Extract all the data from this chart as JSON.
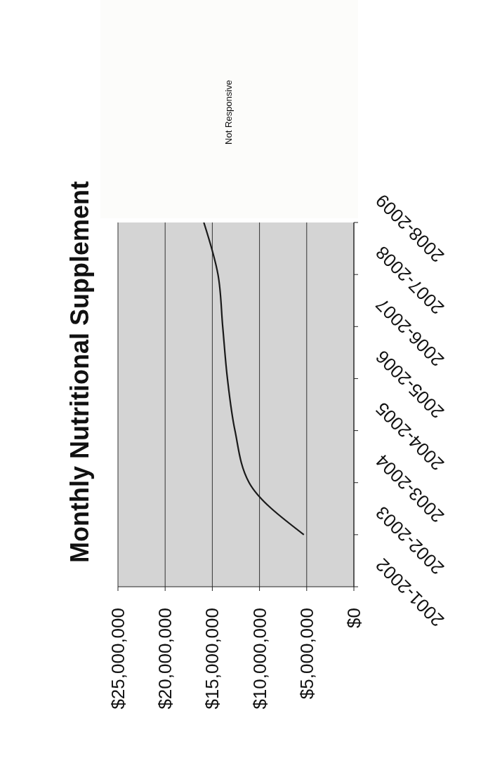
{
  "chart_data": {
    "type": "line",
    "title": "Monthly Nutritional Supplement",
    "orientation": "horizontal",
    "categories": [
      "2008-2009",
      "2007-2008",
      "2006-2007",
      "2005-2006",
      "2004-2005",
      "2003-2004",
      "2002-2003",
      "2001-2002"
    ],
    "series": [
      {
        "color": "#1a1a1a",
        "values": [
          15900000,
          14400000,
          13900000,
          13400000,
          12600000,
          11100000,
          5300000,
          null
        ]
      }
    ],
    "xlim": [
      25000000,
      0
    ],
    "xticks": [
      {
        "value": 0,
        "label": "$0"
      },
      {
        "value": 5000000,
        "label": "$5,000,000"
      },
      {
        "value": 10000000,
        "label": "$10,000,000"
      },
      {
        "value": 15000000,
        "label": "$15,000,000"
      },
      {
        "value": 20000000,
        "label": "$20,000,000"
      },
      {
        "value": 25000000,
        "label": "$25,000,000"
      }
    ],
    "grid": "x",
    "marker": "none",
    "line_style": "solid",
    "annotations": [
      "Not Responsive"
    ]
  }
}
